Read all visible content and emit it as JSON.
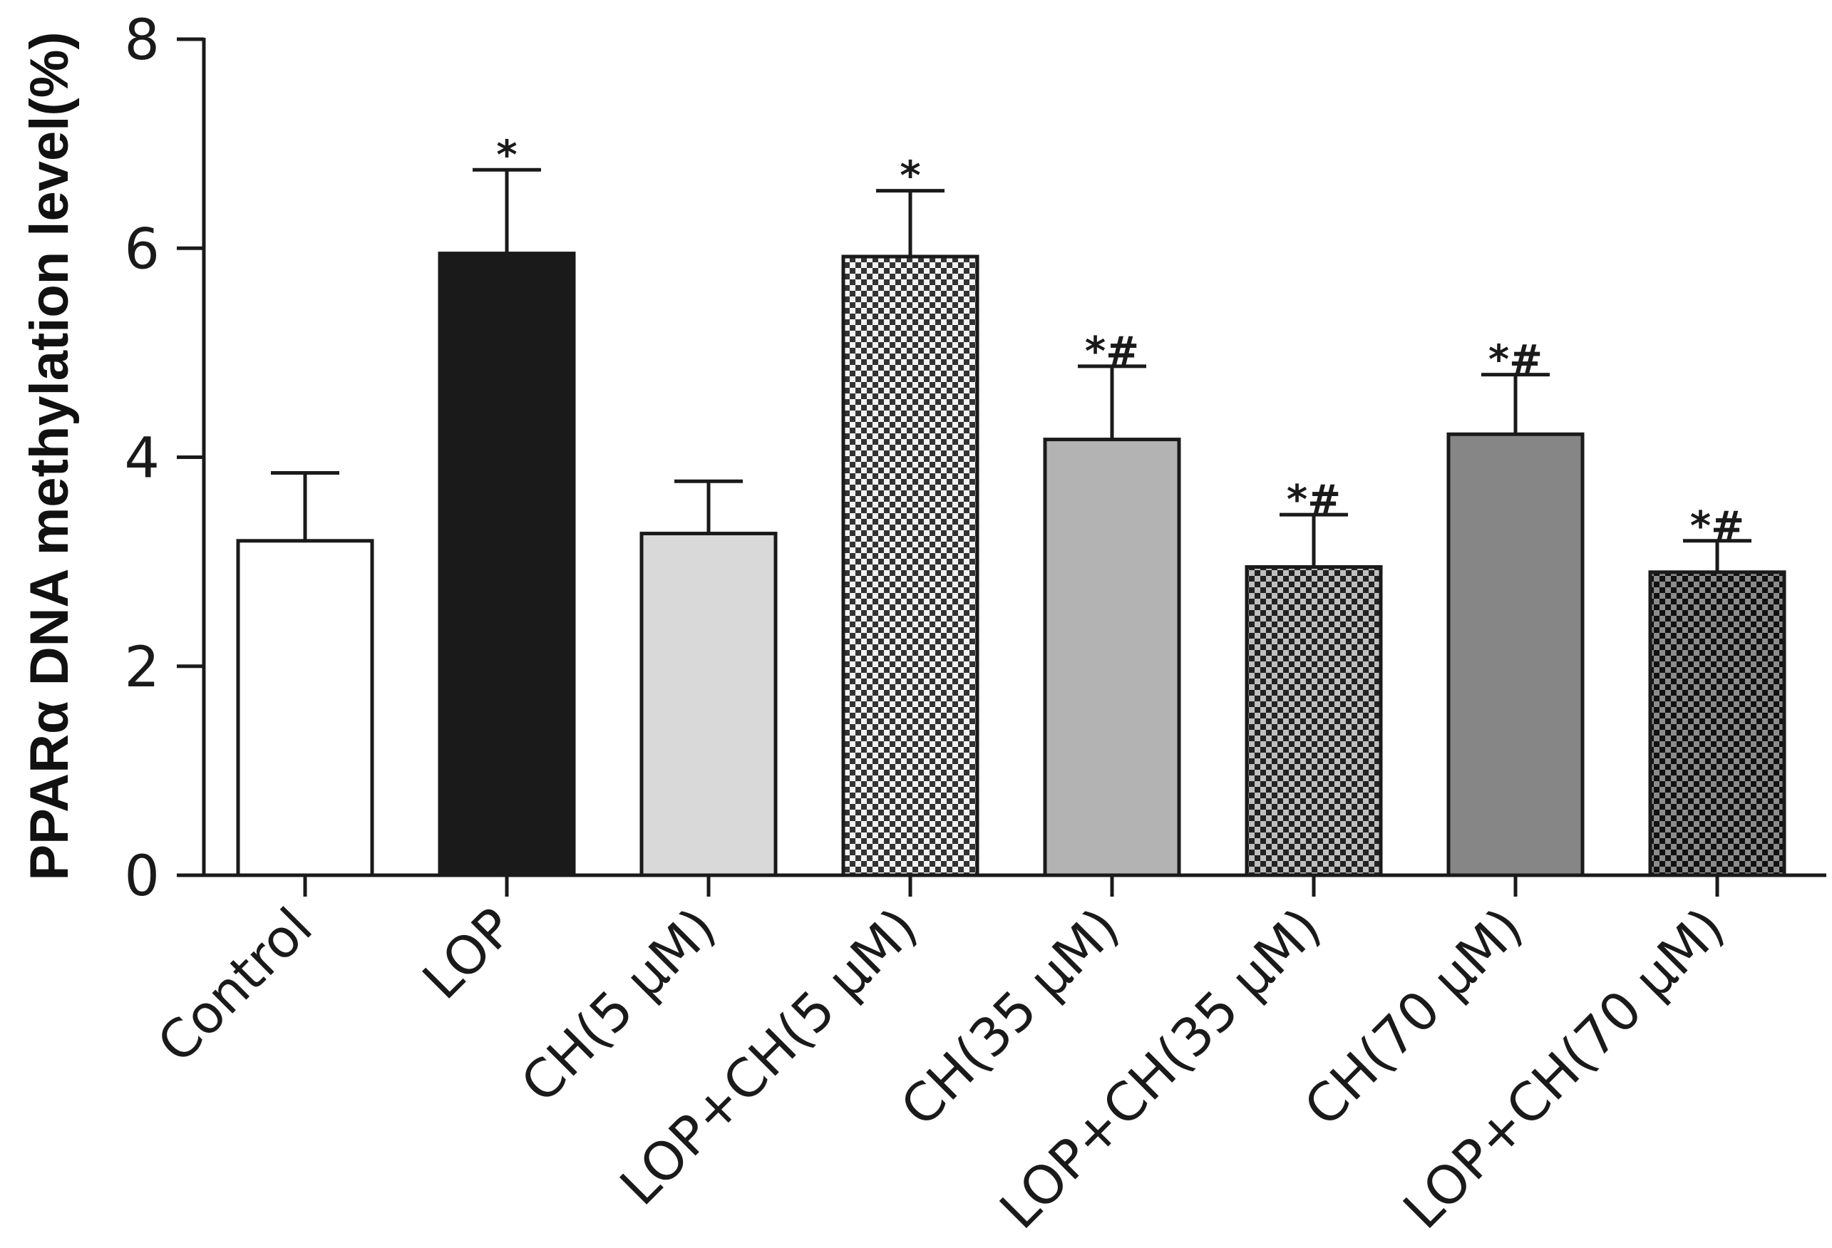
{
  "chart_data": {
    "type": "bar",
    "title": "",
    "xlabel": "",
    "ylabel": "PPARα DNA methylation level(%)",
    "ylim": [
      0,
      8
    ],
    "yticks": [
      0,
      2,
      4,
      6,
      8
    ],
    "grid": false,
    "categories": [
      "Control",
      "LOP",
      "CH(5 μM)",
      "LOP+CH(5 μM)",
      "CH(35 μM)",
      "LOP+CH(35 μM)",
      "CH(70 μM)",
      "LOP+CH(70 μM)"
    ],
    "values": [
      3.2,
      5.95,
      3.27,
      5.92,
      4.17,
      2.95,
      4.22,
      2.9
    ],
    "errors": [
      0.65,
      0.8,
      0.5,
      0.63,
      0.7,
      0.5,
      0.57,
      0.3
    ],
    "significance": [
      "",
      "*",
      "",
      "*",
      "*#",
      "*#",
      "*#",
      "*#"
    ],
    "fills": [
      {
        "color": "#ffffff",
        "pattern": "solid"
      },
      {
        "color": "#1a1a1a",
        "pattern": "solid"
      },
      {
        "color": "#d9d9d9",
        "pattern": "solid"
      },
      {
        "color": "#f2f2f2",
        "pattern": "checker",
        "checker_color": "#333333"
      },
      {
        "color": "#b3b3b3",
        "pattern": "solid"
      },
      {
        "color": "#bfbfbf",
        "pattern": "checker",
        "checker_color": "#222222"
      },
      {
        "color": "#868686",
        "pattern": "solid"
      },
      {
        "color": "#8c8c8c",
        "pattern": "checker",
        "checker_color": "#111111"
      }
    ]
  }
}
